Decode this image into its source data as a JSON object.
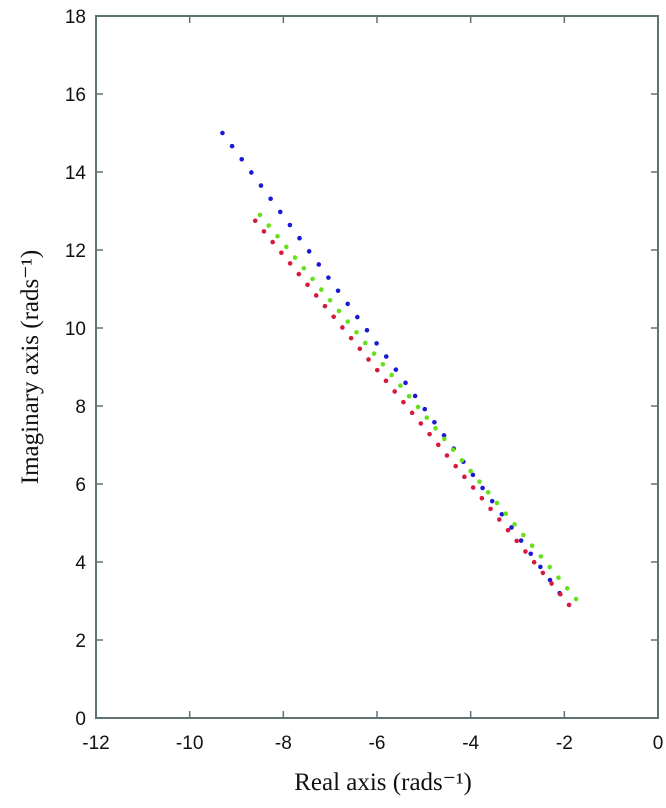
{
  "chart_data": {
    "type": "scatter",
    "title": "",
    "xlabel": "Real axis (rads⁻¹)",
    "ylabel": "Imaginary axis (rads⁻¹)",
    "xlim": [
      -12,
      0
    ],
    "ylim": [
      0,
      18
    ],
    "xticks": [
      -12,
      -10,
      -8,
      -6,
      -4,
      -2,
      0
    ],
    "yticks": [
      0,
      2,
      4,
      6,
      8,
      10,
      12,
      14,
      16,
      18
    ],
    "grid": false,
    "legend": null,
    "series": [
      {
        "name": "blue",
        "color": "#1a1ad6",
        "start": [
          -9.3,
          15.0
        ],
        "end": [
          -2.1,
          3.2
        ],
        "count": 36
      },
      {
        "name": "red",
        "color": "#d61a3c",
        "start": [
          -8.6,
          12.75
        ],
        "end": [
          -1.9,
          2.9
        ],
        "count": 37
      },
      {
        "name": "green",
        "color": "#66e01a",
        "start": [
          -8.5,
          12.9
        ],
        "end": [
          -1.75,
          3.05
        ],
        "count": 37
      }
    ]
  }
}
